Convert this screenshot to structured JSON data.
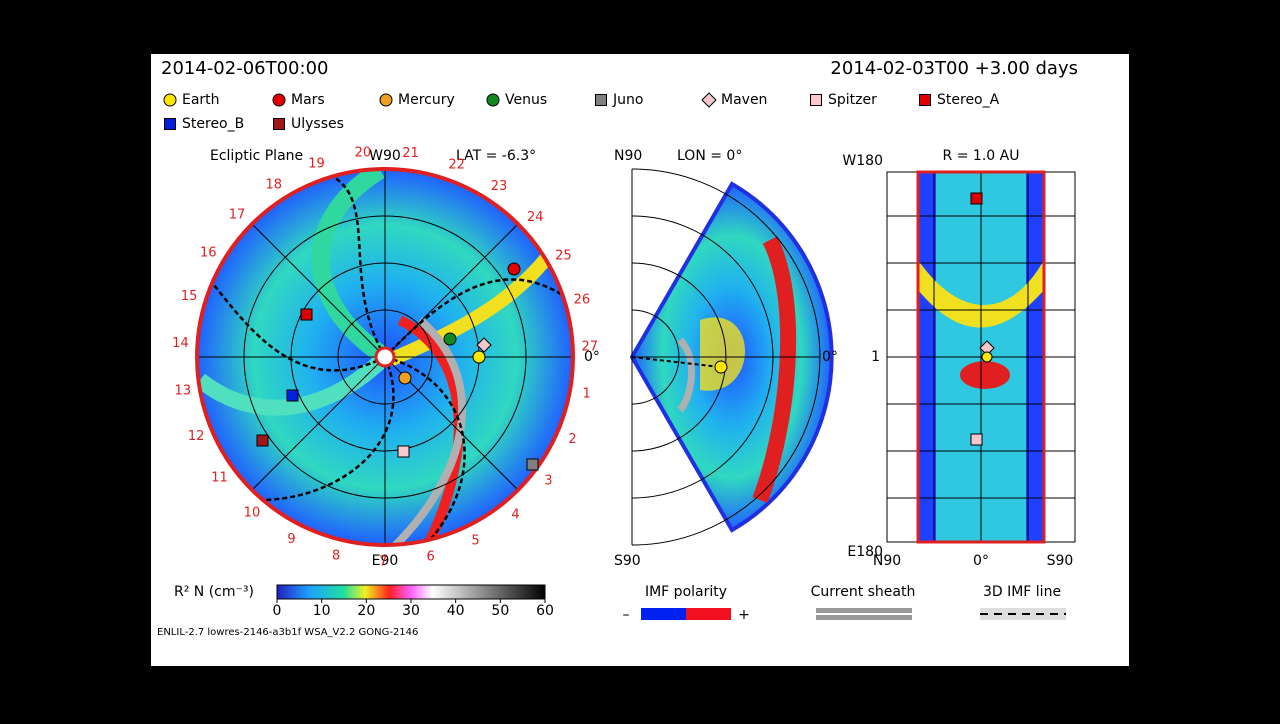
{
  "header": {
    "time": "2014-02-06T00:00",
    "run": "2014-02-03T00 +3.00 days"
  },
  "legend": [
    {
      "label": "Earth",
      "color": "#ffe600",
      "shape": "circle"
    },
    {
      "label": "Mars",
      "color": "#e00000",
      "shape": "circle"
    },
    {
      "label": "Mercury",
      "color": "#f0a020",
      "shape": "circle"
    },
    {
      "label": "Venus",
      "color": "#108a20",
      "shape": "circle"
    },
    {
      "label": "Juno",
      "color": "#808080",
      "shape": "square"
    },
    {
      "label": "Maven",
      "color": "#f4c8c8",
      "shape": "diamond"
    },
    {
      "label": "Spitzer",
      "color": "#f8c8d0",
      "shape": "square"
    },
    {
      "label": "Stereo_A",
      "color": "#e00000",
      "shape": "square"
    },
    {
      "label": "Stereo_B",
      "color": "#0020e0",
      "shape": "square"
    },
    {
      "label": "Ulysses",
      "color": "#a01818",
      "shape": "square"
    }
  ],
  "ecliptic": {
    "title": "Ecliptic Plane",
    "top": "W90",
    "lat": "LAT = -6.3°",
    "bottom": "E90",
    "right": "0°",
    "carrington": [
      "1",
      "2",
      "3",
      "4",
      "5",
      "6",
      "7",
      "8",
      "9",
      "10",
      "11",
      "12",
      "13",
      "14",
      "15",
      "16",
      "17",
      "18",
      "19",
      "20",
      "21",
      "22",
      "23",
      "24",
      "25",
      "26",
      "27"
    ]
  },
  "meridional": {
    "top": "N90",
    "lon": "LON = 0°",
    "bottom": "S90",
    "right": "0°"
  },
  "radial": {
    "title": "R = 1.0 AU",
    "top": "W180",
    "middle": "1",
    "bottom": "E180",
    "xlabels": [
      "N90",
      "0°",
      "S90"
    ]
  },
  "colorbar": {
    "label": "R² N (cm⁻³)",
    "range": [
      0,
      60
    ],
    "ticks": [
      0,
      10,
      20,
      30,
      40,
      50,
      60
    ]
  },
  "imf": {
    "title": "IMF polarity",
    "minus": "–",
    "plus": "+"
  },
  "sheath": "Current sheath",
  "imf_line": "3D IMF line",
  "footer": "ENLIL-2.7 lowres-2146-a3b1f WSA_V2.2 GONG-2146"
}
